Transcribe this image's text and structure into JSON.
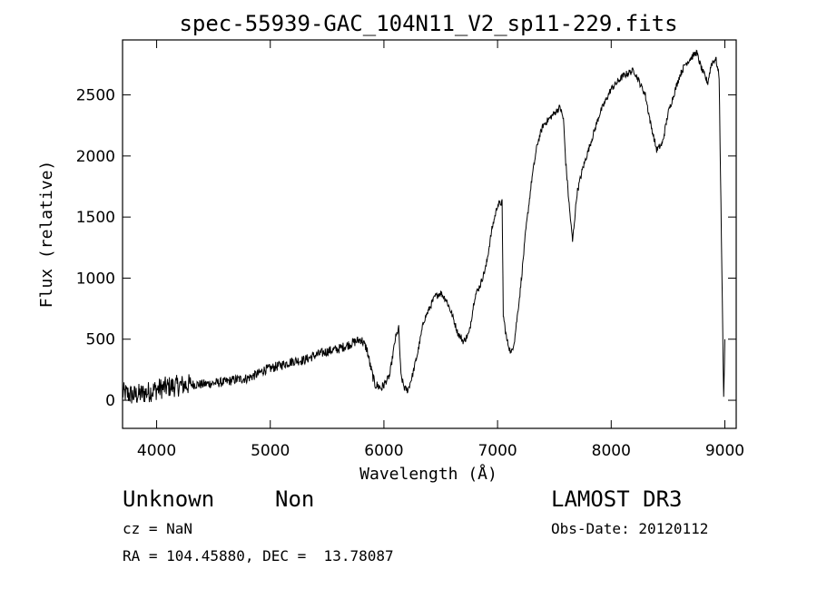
{
  "chart_data": {
    "type": "line",
    "title": "spec-55939-GAC_104N11_V2_sp11-229.fits",
    "xlabel": "Wavelength (Å)",
    "ylabel": "Flux (relative)",
    "xlim": [
      3700,
      9100
    ],
    "ylim": [
      -230,
      2950
    ],
    "xticks": [
      4000,
      5000,
      6000,
      7000,
      8000,
      9000
    ],
    "yticks": [
      0,
      500,
      1000,
      1500,
      2000,
      2500
    ],
    "xtick_labels": [
      "4000",
      "5000",
      "6000",
      "7000",
      "8000",
      "9000"
    ],
    "ytick_labels": [
      "0",
      "500",
      "1000",
      "1500",
      "2000",
      "2500"
    ],
    "series": [
      {
        "name": "flux",
        "x": [
          3700,
          3800,
          3900,
          4000,
          4100,
          4200,
          4300,
          4400,
          4500,
          4600,
          4700,
          4800,
          4900,
          4950,
          5000,
          5100,
          5200,
          5300,
          5400,
          5500,
          5600,
          5700,
          5800,
          5850,
          5880,
          5920,
          5980,
          6050,
          6100,
          6130,
          6150,
          6180,
          6210,
          6250,
          6300,
          6350,
          6400,
          6450,
          6500,
          6550,
          6600,
          6650,
          6700,
          6750,
          6800,
          6850,
          6900,
          6950,
          7000,
          7040,
          7050,
          7080,
          7120,
          7150,
          7200,
          7250,
          7300,
          7350,
          7400,
          7450,
          7500,
          7550,
          7580,
          7600,
          7630,
          7660,
          7680,
          7700,
          7750,
          7800,
          7850,
          7900,
          7950,
          8000,
          8050,
          8100,
          8150,
          8200,
          8250,
          8300,
          8350,
          8400,
          8450,
          8500,
          8550,
          8600,
          8650,
          8700,
          8750,
          8800,
          8850,
          8880,
          8920,
          8950,
          8990,
          9000
        ],
        "y": [
          60,
          40,
          60,
          90,
          110,
          120,
          130,
          130,
          140,
          150,
          170,
          180,
          220,
          250,
          260,
          290,
          320,
          330,
          370,
          400,
          420,
          460,
          500,
          420,
          280,
          130,
          100,
          200,
          500,
          590,
          200,
          100,
          80,
          200,
          400,
          650,
          750,
          850,
          880,
          820,
          700,
          550,
          480,
          550,
          850,
          950,
          1100,
          1400,
          1600,
          1620,
          700,
          500,
          380,
          500,
          900,
          1400,
          1800,
          2100,
          2250,
          2300,
          2350,
          2400,
          2300,
          1950,
          1600,
          1300,
          1500,
          1700,
          1900,
          2050,
          2200,
          2350,
          2450,
          2550,
          2600,
          2650,
          2680,
          2700,
          2600,
          2500,
          2250,
          2050,
          2100,
          2350,
          2500,
          2650,
          2750,
          2800,
          2850,
          2700,
          2600,
          2750,
          2800,
          2650,
          10,
          500
        ]
      }
    ]
  },
  "info": {
    "class_label": "Unknown",
    "subclass_label": "Non",
    "survey_label": "LAMOST DR3",
    "cz_line": "cz = NaN",
    "obs_date_line": "Obs-Date: 20120112",
    "radec_line": "RA = 104.45880, DEC =  13.78087"
  }
}
